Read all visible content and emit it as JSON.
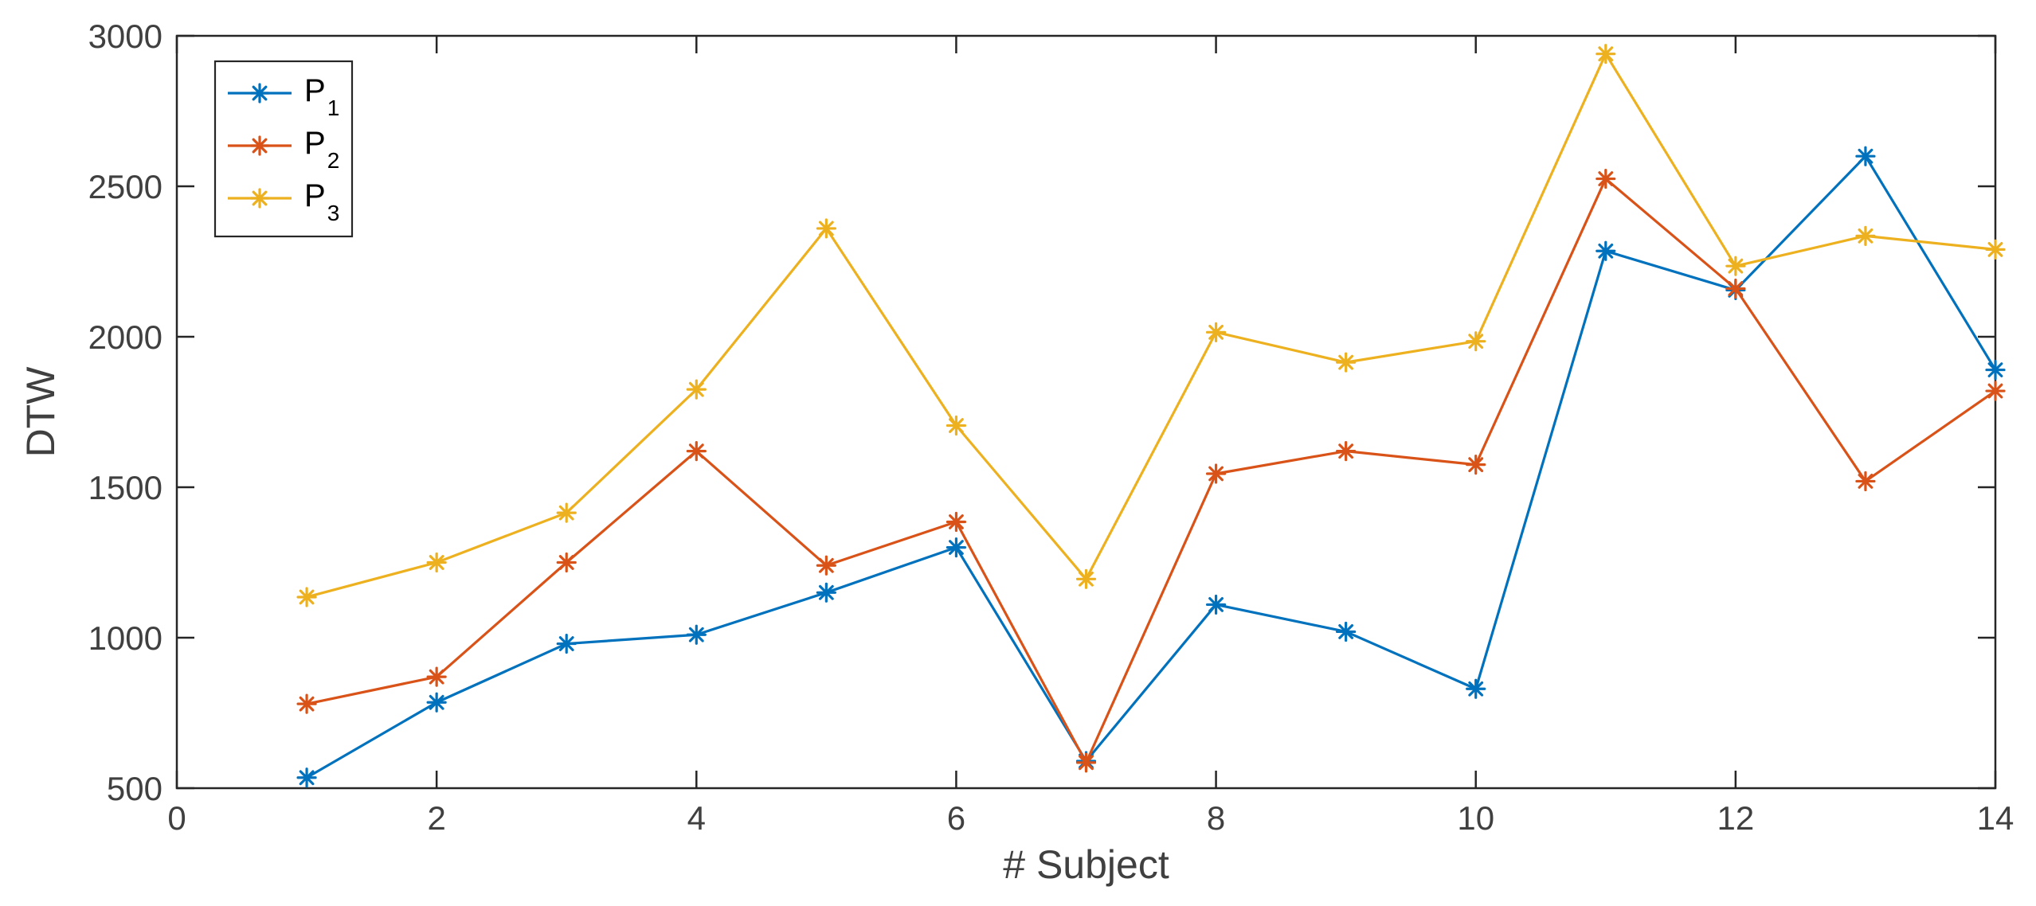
{
  "chart_data": {
    "type": "line",
    "title": "",
    "xlabel": "# Subject",
    "ylabel": "DTW",
    "xlim": [
      0,
      14
    ],
    "ylim": [
      500,
      3000
    ],
    "xticks": [
      "0",
      "2",
      "4",
      "6",
      "8",
      "10",
      "12",
      "14"
    ],
    "yticks": [
      "500",
      "1000",
      "1500",
      "2000",
      "2500",
      "3000"
    ],
    "grid": false,
    "legend_position": "top-left",
    "x": [
      1,
      2,
      3,
      4,
      5,
      6,
      7,
      8,
      9,
      10,
      11,
      12,
      13,
      14
    ],
    "series": [
      {
        "name": "P",
        "sub": "1",
        "color": "#0072BD",
        "values": [
          535,
          785,
          980,
          1010,
          1150,
          1300,
          590,
          1110,
          1020,
          830,
          2285,
          2155,
          2600,
          1890
        ]
      },
      {
        "name": "P",
        "sub": "2",
        "color": "#D95319",
        "values": [
          780,
          870,
          1250,
          1620,
          1240,
          1385,
          585,
          1545,
          1620,
          1575,
          2525,
          2160,
          1520,
          1820
        ]
      },
      {
        "name": "P",
        "sub": "3",
        "color": "#EDB120",
        "values": [
          1135,
          1250,
          1415,
          1825,
          2360,
          1705,
          1195,
          2015,
          1915,
          1985,
          2940,
          2235,
          2335,
          2290
        ]
      }
    ]
  }
}
